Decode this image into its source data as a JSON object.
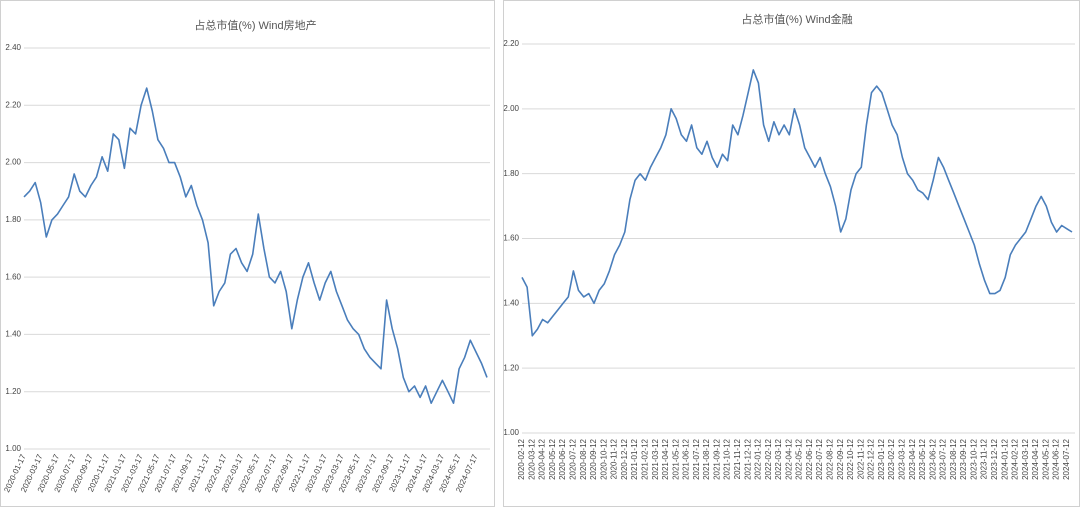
{
  "chart_data": [
    {
      "type": "line",
      "title": "占总市值(%) Wind房地产",
      "color": "#4a7ebb",
      "grid": true,
      "ylim": [
        1.0,
        2.4
      ],
      "yticks": [
        {
          "value": 1.0,
          "label": "1.00"
        },
        {
          "value": 1.2,
          "label": "1.20"
        },
        {
          "value": 1.4,
          "label": "1.40"
        },
        {
          "value": 1.6,
          "label": "1.60"
        },
        {
          "value": 1.8,
          "label": "1.80"
        },
        {
          "value": 2.0,
          "label": "2.00"
        },
        {
          "value": 2.2,
          "label": "2.20"
        },
        {
          "value": 2.4,
          "label": "2.40"
        }
      ],
      "categories": [
        "2020-01-17",
        null,
        null,
        "2020-03-17",
        null,
        null,
        "2020-05-17",
        null,
        null,
        "2020-07-17",
        null,
        null,
        "2020-09-17",
        null,
        null,
        "2020-11-17",
        null,
        null,
        "2021-01-17",
        null,
        null,
        "2021-03-17",
        null,
        null,
        "2021-05-17",
        null,
        null,
        "2021-07-17",
        null,
        null,
        "2021-09-17",
        null,
        null,
        "2021-11-17",
        null,
        null,
        "2022-01-17",
        null,
        null,
        "2022-03-17",
        null,
        null,
        "2022-05-17",
        null,
        null,
        "2022-07-17",
        null,
        null,
        "2022-09-17",
        null,
        null,
        "2022-11-17",
        null,
        null,
        "2023-01-17",
        null,
        null,
        "2023-03-17",
        null,
        null,
        "2023-05-17",
        null,
        null,
        "2023-07-17",
        null,
        null,
        "2023-09-17",
        null,
        null,
        "2023-11-17",
        null,
        null,
        "2024-01-17",
        null,
        null,
        "2024-03-17",
        null,
        null,
        "2024-05-17",
        null,
        null,
        "2024-07-17",
        null,
        null
      ],
      "values": [
        1.88,
        1.9,
        1.93,
        1.86,
        1.74,
        1.8,
        1.82,
        1.85,
        1.88,
        1.96,
        1.9,
        1.88,
        1.92,
        1.95,
        2.02,
        1.97,
        2.1,
        2.08,
        1.98,
        2.12,
        2.1,
        2.2,
        2.26,
        2.18,
        2.08,
        2.05,
        2.0,
        2.0,
        1.95,
        1.88,
        1.92,
        1.85,
        1.8,
        1.72,
        1.5,
        1.55,
        1.58,
        1.68,
        1.7,
        1.65,
        1.62,
        1.68,
        1.82,
        1.7,
        1.6,
        1.58,
        1.62,
        1.55,
        1.42,
        1.52,
        1.6,
        1.65,
        1.58,
        1.52,
        1.58,
        1.62,
        1.55,
        1.5,
        1.45,
        1.42,
        1.4,
        1.35,
        1.32,
        1.3,
        1.28,
        1.52,
        1.42,
        1.35,
        1.25,
        1.2,
        1.22,
        1.18,
        1.22,
        1.16,
        1.2,
        1.24,
        1.2,
        1.16,
        1.28,
        1.32,
        1.38,
        1.34,
        1.3,
        1.25
      ]
    },
    {
      "type": "line",
      "title": "占总市值(%) Wind金融",
      "color": "#4a7ebb",
      "grid": true,
      "ylim": [
        1.0,
        2.2
      ],
      "yticks": [
        {
          "value": 1.0,
          "label": "1.00"
        },
        {
          "value": 1.2,
          "label": "1.20"
        },
        {
          "value": 1.4,
          "label": "1.40"
        },
        {
          "value": 1.6,
          "label": "1.60"
        },
        {
          "value": 1.8,
          "label": "1.80"
        },
        {
          "value": 2.0,
          "label": "2.00"
        },
        {
          "value": 2.2,
          "label": "2.20"
        }
      ],
      "categories": [
        "2020-02-12",
        null,
        "2020-03-12",
        null,
        "2020-04-12",
        null,
        "2020-05-12",
        null,
        "2020-06-12",
        null,
        "2020-07-12",
        null,
        "2020-08-12",
        null,
        "2020-09-12",
        null,
        "2020-10-12",
        null,
        "2020-11-12",
        null,
        "2020-12-12",
        null,
        "2021-01-12",
        null,
        "2021-02-12",
        null,
        "2021-03-12",
        null,
        "2021-04-12",
        null,
        "2021-05-12",
        null,
        "2021-06-12",
        null,
        "2021-07-12",
        null,
        "2021-08-12",
        null,
        "2021-09-12",
        null,
        "2021-10-12",
        null,
        "2021-11-12",
        null,
        "2021-12-12",
        null,
        "2022-01-12",
        null,
        "2022-02-12",
        null,
        "2022-03-12",
        null,
        "2022-04-12",
        null,
        "2022-05-12",
        null,
        "2022-06-12",
        null,
        "2022-07-12",
        null,
        "2022-08-12",
        null,
        "2022-09-12",
        null,
        "2022-10-12",
        null,
        "2022-11-12",
        null,
        "2022-12-12",
        null,
        "2023-01-12",
        null,
        "2023-02-12",
        null,
        "2023-03-12",
        null,
        "2023-04-12",
        null,
        "2023-05-12",
        null,
        "2023-06-12",
        null,
        "2023-07-12",
        null,
        "2023-08-12",
        null,
        "2023-09-12",
        null,
        "2023-10-12",
        null,
        "2023-11-12",
        null,
        "2023-12-12",
        null,
        "2024-01-12",
        null,
        "2024-02-12",
        null,
        "2024-03-12",
        null,
        "2024-04-12",
        null,
        "2024-05-12",
        null,
        "2024-06-12",
        null,
        "2024-07-12",
        null
      ],
      "values": [
        1.48,
        1.45,
        1.3,
        1.32,
        1.35,
        1.34,
        1.36,
        1.38,
        1.4,
        1.42,
        1.5,
        1.44,
        1.42,
        1.43,
        1.4,
        1.44,
        1.46,
        1.5,
        1.55,
        1.58,
        1.62,
        1.72,
        1.78,
        1.8,
        1.78,
        1.82,
        1.85,
        1.88,
        1.92,
        2.0,
        1.97,
        1.92,
        1.9,
        1.95,
        1.88,
        1.86,
        1.9,
        1.85,
        1.82,
        1.86,
        1.84,
        1.95,
        1.92,
        1.98,
        2.05,
        2.12,
        2.08,
        1.95,
        1.9,
        1.96,
        1.92,
        1.95,
        1.92,
        2.0,
        1.95,
        1.88,
        1.85,
        1.82,
        1.85,
        1.8,
        1.76,
        1.7,
        1.62,
        1.66,
        1.75,
        1.8,
        1.82,
        1.95,
        2.05,
        2.07,
        2.05,
        2.0,
        1.95,
        1.92,
        1.85,
        1.8,
        1.78,
        1.75,
        1.74,
        1.72,
        1.78,
        1.85,
        1.82,
        1.78,
        1.74,
        1.7,
        1.66,
        1.62,
        1.58,
        1.52,
        1.47,
        1.43,
        1.43,
        1.44,
        1.48,
        1.55,
        1.58,
        1.6,
        1.62,
        1.66,
        1.7,
        1.73,
        1.7,
        1.65,
        1.62,
        1.64,
        1.63,
        1.62
      ]
    }
  ]
}
